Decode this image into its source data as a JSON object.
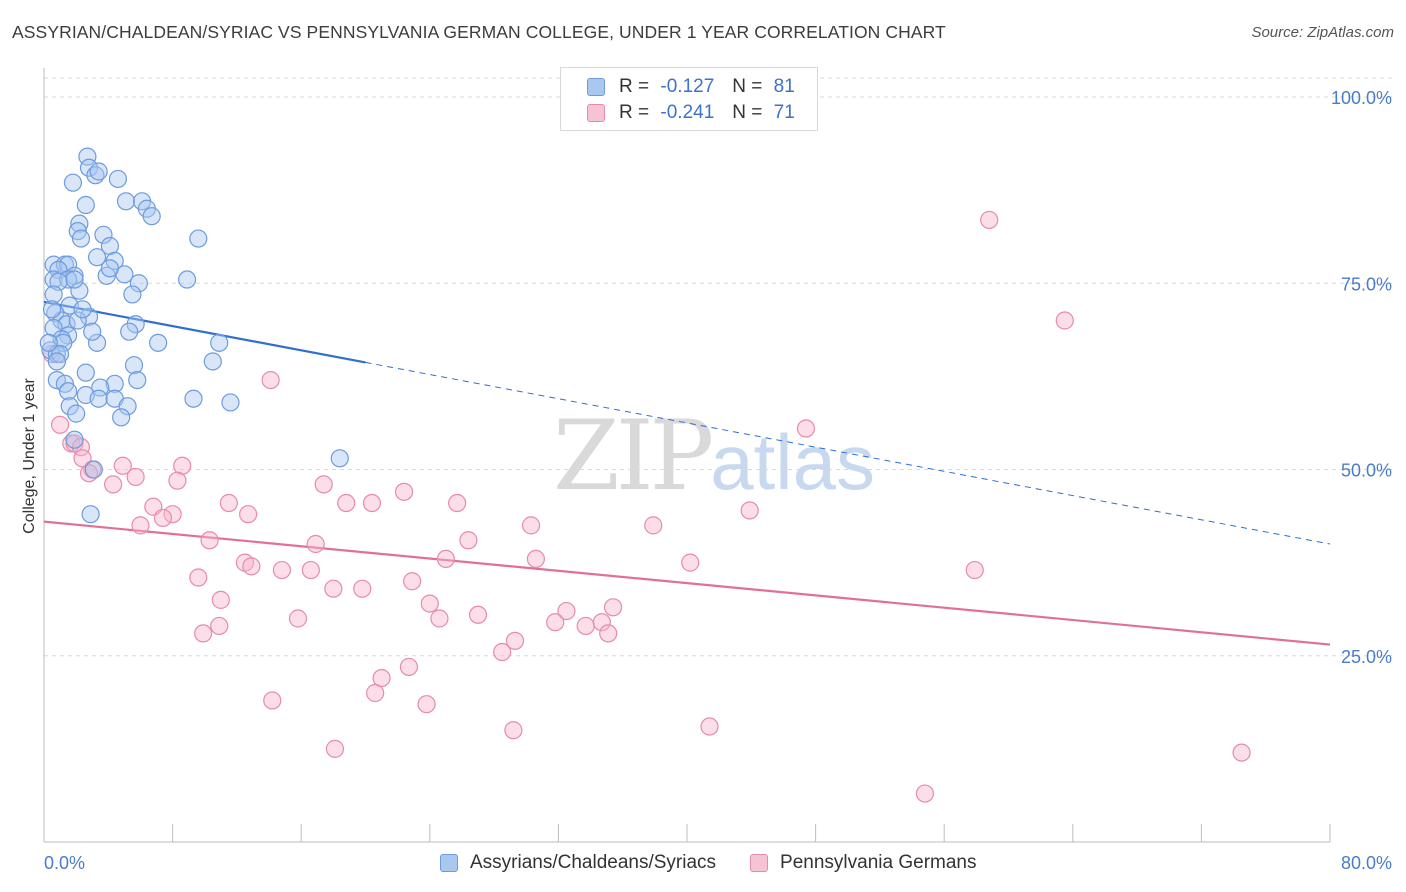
{
  "header": {
    "title": "ASSYRIAN/CHALDEAN/SYRIAC VS PENNSYLVANIA GERMAN COLLEGE, UNDER 1 YEAR CORRELATION CHART",
    "source": "Source: ZipAtlas.com"
  },
  "watermark": {
    "zip": "ZIP",
    "atlas": "atlas"
  },
  "legend": {
    "rows": [
      {
        "r_label": "R =",
        "r_value": "-0.127",
        "n_label": "N =",
        "n_value": "81"
      },
      {
        "r_label": "R =",
        "r_value": "-0.241",
        "n_label": "N =",
        "n_value": "71"
      }
    ]
  },
  "bottom_legend": {
    "series1": "Assyrians/Chaldeans/Syriacs",
    "series2": "Pennsylvania Germans"
  },
  "colors": {
    "blue_fill": "#a9c7ef",
    "blue_stroke": "#6d9be0",
    "blue_line": "#2f6fd0",
    "pink_fill": "#f6b5cb",
    "pink_stroke": "#e88aab",
    "pink_line": "#e0709a",
    "grid": "#d9d9d9",
    "tick_text": "#4a7cc9"
  },
  "chart_data": {
    "type": "scatter",
    "title": "ASSYRIAN/CHALDEAN/SYRIAC VS PENNSYLVANIA GERMAN COLLEGE, UNDER 1 YEAR CORRELATION CHART",
    "xlabel": "",
    "ylabel": "College, Under 1 year",
    "xlim": [
      0,
      80
    ],
    "ylim": [
      0,
      100
    ],
    "x_tick_labels": [
      "0.0%",
      "80.0%"
    ],
    "y_tick_values": [
      25,
      50,
      75,
      100
    ],
    "y_tick_labels": [
      "25.0%",
      "50.0%",
      "75.0%",
      "100.0%"
    ],
    "grid": true,
    "series": [
      {
        "name": "Assyrians/Chaldeans/Syriacs",
        "R": -0.127,
        "N": 81,
        "trend": {
          "x0": 0,
          "y0": 72.5,
          "x1": 80,
          "y1": 40.0,
          "solid_until_x": 20
        },
        "points": [
          [
            2.7,
            92
          ],
          [
            2.8,
            90.5
          ],
          [
            3.2,
            89.5
          ],
          [
            3.4,
            90
          ],
          [
            4.6,
            89
          ],
          [
            1.8,
            88.5
          ],
          [
            2.6,
            85.5
          ],
          [
            5.1,
            86
          ],
          [
            6.1,
            86
          ],
          [
            6.4,
            85
          ],
          [
            6.7,
            84
          ],
          [
            2.2,
            83
          ],
          [
            2.1,
            82
          ],
          [
            2.3,
            81
          ],
          [
            3.7,
            81.5
          ],
          [
            9.6,
            81
          ],
          [
            4.1,
            80
          ],
          [
            3.3,
            78.5
          ],
          [
            4.4,
            78
          ],
          [
            0.6,
            77.5
          ],
          [
            1.3,
            77.5
          ],
          [
            1.5,
            77.5
          ],
          [
            0.9,
            76.8
          ],
          [
            1.9,
            76
          ],
          [
            3.9,
            76
          ],
          [
            5.0,
            76.2
          ],
          [
            0.6,
            75.5
          ],
          [
            1.5,
            75.5
          ],
          [
            0.9,
            75.2
          ],
          [
            8.9,
            75.5
          ],
          [
            5.9,
            75
          ],
          [
            2.2,
            74
          ],
          [
            0.6,
            73.5
          ],
          [
            5.5,
            73.5
          ],
          [
            1.6,
            72
          ],
          [
            0.7,
            71
          ],
          [
            2.8,
            70.5
          ],
          [
            1.1,
            70
          ],
          [
            1.4,
            69.5
          ],
          [
            2.1,
            70
          ],
          [
            5.7,
            69.5
          ],
          [
            0.6,
            69
          ],
          [
            1.5,
            68
          ],
          [
            5.3,
            68.5
          ],
          [
            1.1,
            67.5
          ],
          [
            1.2,
            67
          ],
          [
            3.3,
            67
          ],
          [
            7.1,
            67
          ],
          [
            10.9,
            67
          ],
          [
            0.4,
            66
          ],
          [
            0.8,
            65.5
          ],
          [
            1.0,
            65.5
          ],
          [
            10.5,
            64.5
          ],
          [
            5.6,
            64
          ],
          [
            2.6,
            63
          ],
          [
            0.8,
            62
          ],
          [
            1.3,
            61.5
          ],
          [
            5.8,
            62
          ],
          [
            4.4,
            61.5
          ],
          [
            3.5,
            61
          ],
          [
            1.5,
            60.5
          ],
          [
            2.6,
            60
          ],
          [
            3.4,
            59.5
          ],
          [
            4.4,
            59.5
          ],
          [
            9.3,
            59.5
          ],
          [
            11.6,
            59
          ],
          [
            1.6,
            58.5
          ],
          [
            5.2,
            58.5
          ],
          [
            2.0,
            57.5
          ],
          [
            4.8,
            57
          ],
          [
            1.9,
            54
          ],
          [
            18.4,
            51.5
          ],
          [
            3.1,
            50
          ],
          [
            2.9,
            44
          ],
          [
            0.5,
            71.5
          ],
          [
            0.3,
            67
          ],
          [
            3.0,
            68.5
          ],
          [
            4.1,
            77
          ],
          [
            1.9,
            75.5
          ],
          [
            2.4,
            71.5
          ],
          [
            0.8,
            64.5
          ]
        ]
      },
      {
        "name": "Pennsylvania Germans",
        "R": -0.241,
        "N": 71,
        "trend": {
          "x0": 0,
          "y0": 43.0,
          "x1": 80,
          "y1": 26.5
        },
        "points": [
          [
            0.5,
            65.5
          ],
          [
            58.8,
            83.5
          ],
          [
            63.5,
            70
          ],
          [
            14.1,
            62
          ],
          [
            47.4,
            55.5
          ],
          [
            1.0,
            56
          ],
          [
            1.7,
            53.5
          ],
          [
            1.9,
            53.5
          ],
          [
            2.3,
            53
          ],
          [
            3.0,
            50
          ],
          [
            4.9,
            50.5
          ],
          [
            8.6,
            50.5
          ],
          [
            2.8,
            49.5
          ],
          [
            5.7,
            49
          ],
          [
            8.3,
            48.5
          ],
          [
            17.4,
            48
          ],
          [
            4.3,
            48
          ],
          [
            22.4,
            47
          ],
          [
            6.8,
            45
          ],
          [
            11.5,
            45.5
          ],
          [
            18.8,
            45.5
          ],
          [
            20.4,
            45.5
          ],
          [
            25.7,
            45.5
          ],
          [
            8.0,
            44
          ],
          [
            7.4,
            43.5
          ],
          [
            12.7,
            44
          ],
          [
            6.0,
            42.5
          ],
          [
            30.3,
            42.5
          ],
          [
            37.9,
            42.5
          ],
          [
            43.9,
            44.5
          ],
          [
            10.3,
            40.5
          ],
          [
            16.9,
            40
          ],
          [
            25.0,
            38
          ],
          [
            30.6,
            38
          ],
          [
            40.2,
            37.5
          ],
          [
            12.5,
            37.5
          ],
          [
            12.9,
            37
          ],
          [
            14.8,
            36.5
          ],
          [
            16.6,
            36.5
          ],
          [
            9.6,
            35.5
          ],
          [
            22.9,
            35
          ],
          [
            57.9,
            36.5
          ],
          [
            18.0,
            34
          ],
          [
            19.8,
            34
          ],
          [
            11.0,
            32.5
          ],
          [
            24.0,
            32
          ],
          [
            32.5,
            31
          ],
          [
            27.0,
            30.5
          ],
          [
            35.4,
            31.5
          ],
          [
            15.8,
            30
          ],
          [
            24.6,
            30
          ],
          [
            31.8,
            29.5
          ],
          [
            33.7,
            29
          ],
          [
            34.7,
            29.5
          ],
          [
            9.9,
            28
          ],
          [
            10.9,
            29
          ],
          [
            35.1,
            28
          ],
          [
            29.3,
            27
          ],
          [
            28.5,
            25.5
          ],
          [
            22.7,
            23.5
          ],
          [
            21.0,
            22
          ],
          [
            20.6,
            20
          ],
          [
            14.2,
            19
          ],
          [
            23.8,
            18.5
          ],
          [
            29.2,
            15
          ],
          [
            41.4,
            15.5
          ],
          [
            18.1,
            12.5
          ],
          [
            74.5,
            12
          ],
          [
            54.8,
            6.5
          ],
          [
            2.4,
            51.5
          ],
          [
            26.4,
            40.5
          ]
        ]
      }
    ]
  }
}
